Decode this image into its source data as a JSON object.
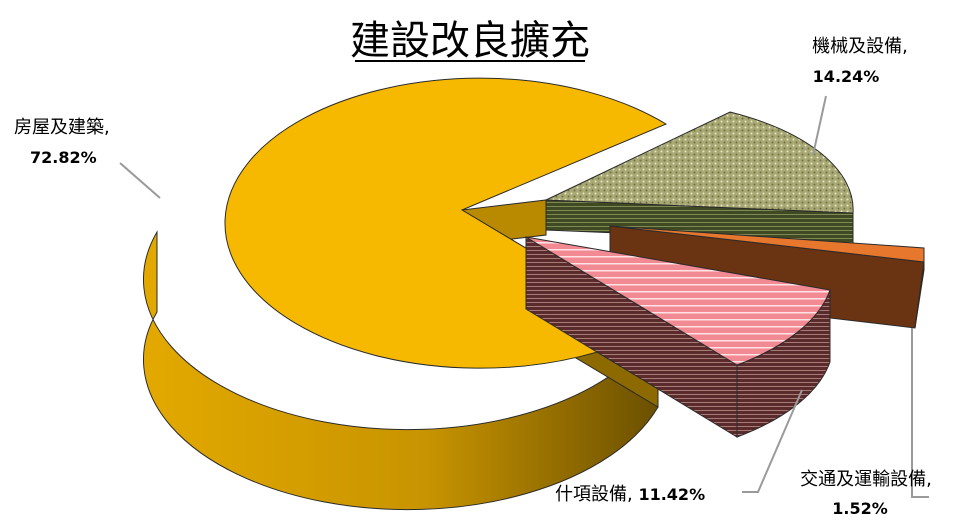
{
  "chart_data": {
    "type": "pie",
    "style": "3d-exploded",
    "title": "建設改良擴充",
    "legend": "none",
    "slices": [
      {
        "name": "房屋及建築",
        "value": 72.82,
        "label": "72.82%",
        "color": "#f7b900",
        "pattern": "solid"
      },
      {
        "name": "機械及設備",
        "value": 14.24,
        "label": "14.24%",
        "color": "#a6a66e",
        "pattern": "dotted"
      },
      {
        "name": "交通及運輸設備",
        "value": 1.52,
        "label": "1.52%",
        "color": "#e8772e",
        "pattern": "solid"
      },
      {
        "name": "什項設備",
        "value": 11.42,
        "label": "11.42%",
        "color": "#f28a93",
        "pattern": "striped"
      }
    ]
  }
}
